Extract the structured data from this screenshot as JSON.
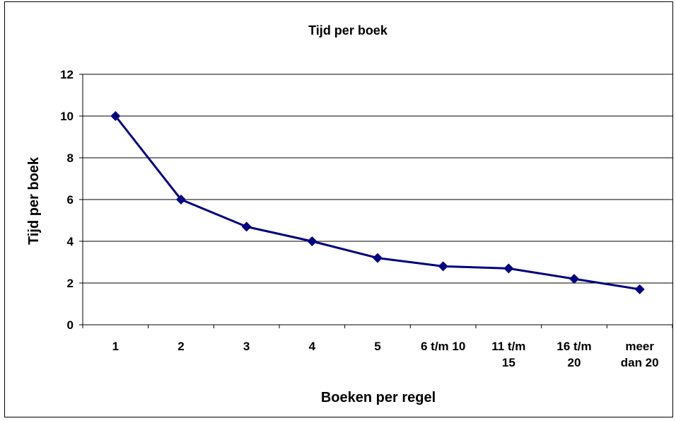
{
  "chart_data": {
    "type": "line",
    "title": "Tijd per boek",
    "xlabel": "Boeken per regel",
    "ylabel": "Tijd per boek",
    "categories": [
      [
        "1"
      ],
      [
        "2"
      ],
      [
        "3"
      ],
      [
        "4"
      ],
      [
        "5"
      ],
      [
        "6 t/m 10"
      ],
      [
        "11 t/m",
        "15"
      ],
      [
        "16 t/m",
        "20"
      ],
      [
        "meer",
        "dan 20"
      ]
    ],
    "series": [
      {
        "values": [
          10,
          6,
          4.7,
          4,
          3.2,
          2.8,
          2.7,
          2.2,
          1.7
        ]
      }
    ],
    "ylim": [
      0,
      12
    ],
    "yticks": [
      0,
      2,
      4,
      6,
      8,
      10,
      12
    ],
    "grid": true,
    "legend": "none",
    "colors": {
      "line": "#000080",
      "marker": "#000080",
      "grid": "#000000",
      "frame": "#000000"
    }
  }
}
